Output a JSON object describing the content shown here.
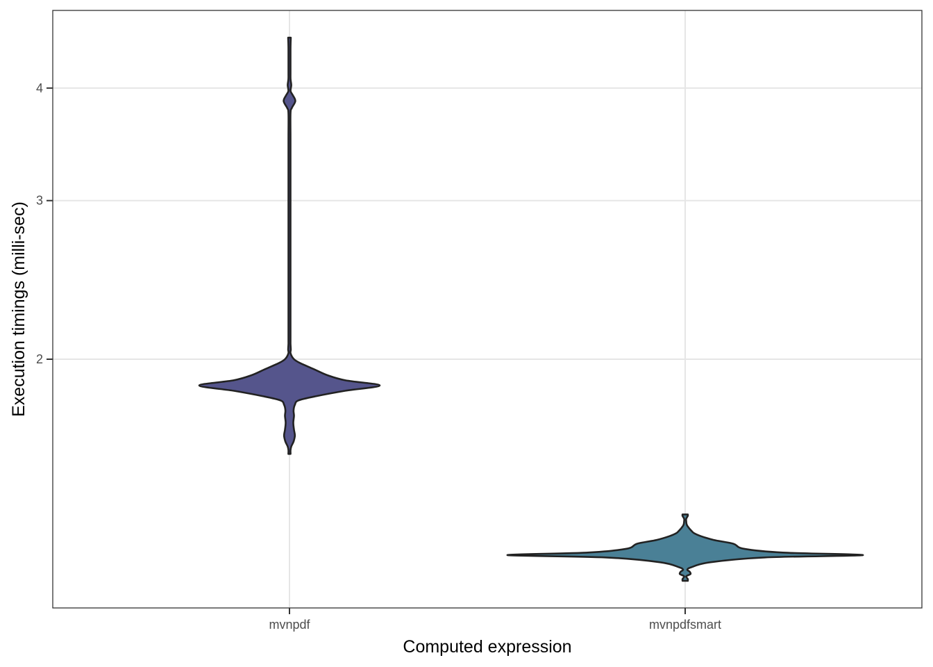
{
  "chart_data": {
    "type": "violin",
    "xlabel": "Computed expression",
    "ylabel": "Execution timings (milli-sec)",
    "yscale": "log",
    "ylim": [
      1.08,
      4.9
    ],
    "yticks": [
      2,
      3,
      4
    ],
    "ytick_labels": [
      "2",
      "3",
      "4"
    ],
    "categories": [
      "mvnpdf",
      "mvnpdfsmart"
    ],
    "grid": true,
    "series": [
      {
        "name": "mvnpdf",
        "color": "#55558C",
        "min": 1.57,
        "max": 4.55,
        "density": [
          [
            1.57,
            0.012
          ],
          [
            1.585,
            0.002
          ],
          [
            1.6,
            0.02
          ],
          [
            1.62,
            0.045
          ],
          [
            1.645,
            0.06
          ],
          [
            1.67,
            0.05
          ],
          [
            1.7,
            0.042
          ],
          [
            1.73,
            0.05
          ],
          [
            1.755,
            0.045
          ],
          [
            1.78,
            0.06
          ],
          [
            1.8,
            0.1
          ],
          [
            1.82,
            0.3
          ],
          [
            1.845,
            0.62
          ],
          [
            1.87,
            1.0
          ],
          [
            1.895,
            0.62
          ],
          [
            1.92,
            0.42
          ],
          [
            1.95,
            0.27
          ],
          [
            1.98,
            0.12
          ],
          [
            2.0,
            0.05
          ],
          [
            2.03,
            0.012
          ],
          [
            2.05,
            0.015
          ],
          [
            2.08,
            0.008
          ],
          [
            2.12,
            0.004
          ],
          [
            2.5,
            0.004
          ],
          [
            3.0,
            0.004
          ],
          [
            3.5,
            0.004
          ],
          [
            3.75,
            0.006
          ],
          [
            3.8,
            0.025
          ],
          [
            3.87,
            0.065
          ],
          [
            3.93,
            0.035
          ],
          [
            3.97,
            0.012
          ],
          [
            4.03,
            0.02
          ],
          [
            4.09,
            0.012
          ],
          [
            4.15,
            0.005
          ],
          [
            4.3,
            0.004
          ],
          [
            4.4,
            0.006
          ],
          [
            4.47,
            0.012
          ],
          [
            4.55,
            0.015
          ]
        ]
      },
      {
        "name": "mvnpdfsmart",
        "color": "#4A8096",
        "min": 1.135,
        "max": 1.345,
        "density": [
          [
            1.135,
            0.015
          ],
          [
            1.14,
            0.015
          ],
          [
            1.148,
            0.004
          ],
          [
            1.155,
            0.03
          ],
          [
            1.162,
            0.025
          ],
          [
            1.168,
            0.012
          ],
          [
            1.175,
            0.035
          ],
          [
            1.19,
            0.14
          ],
          [
            1.205,
            0.45
          ],
          [
            1.212,
            1.0
          ],
          [
            1.22,
            0.55
          ],
          [
            1.232,
            0.33
          ],
          [
            1.248,
            0.27
          ],
          [
            1.26,
            0.16
          ],
          [
            1.272,
            0.09
          ],
          [
            1.282,
            0.05
          ],
          [
            1.29,
            0.035
          ],
          [
            1.3,
            0.02
          ],
          [
            1.31,
            0.009
          ],
          [
            1.322,
            0.003
          ],
          [
            1.33,
            0.002
          ],
          [
            1.34,
            0.015
          ],
          [
            1.345,
            0.015
          ]
        ]
      }
    ]
  }
}
